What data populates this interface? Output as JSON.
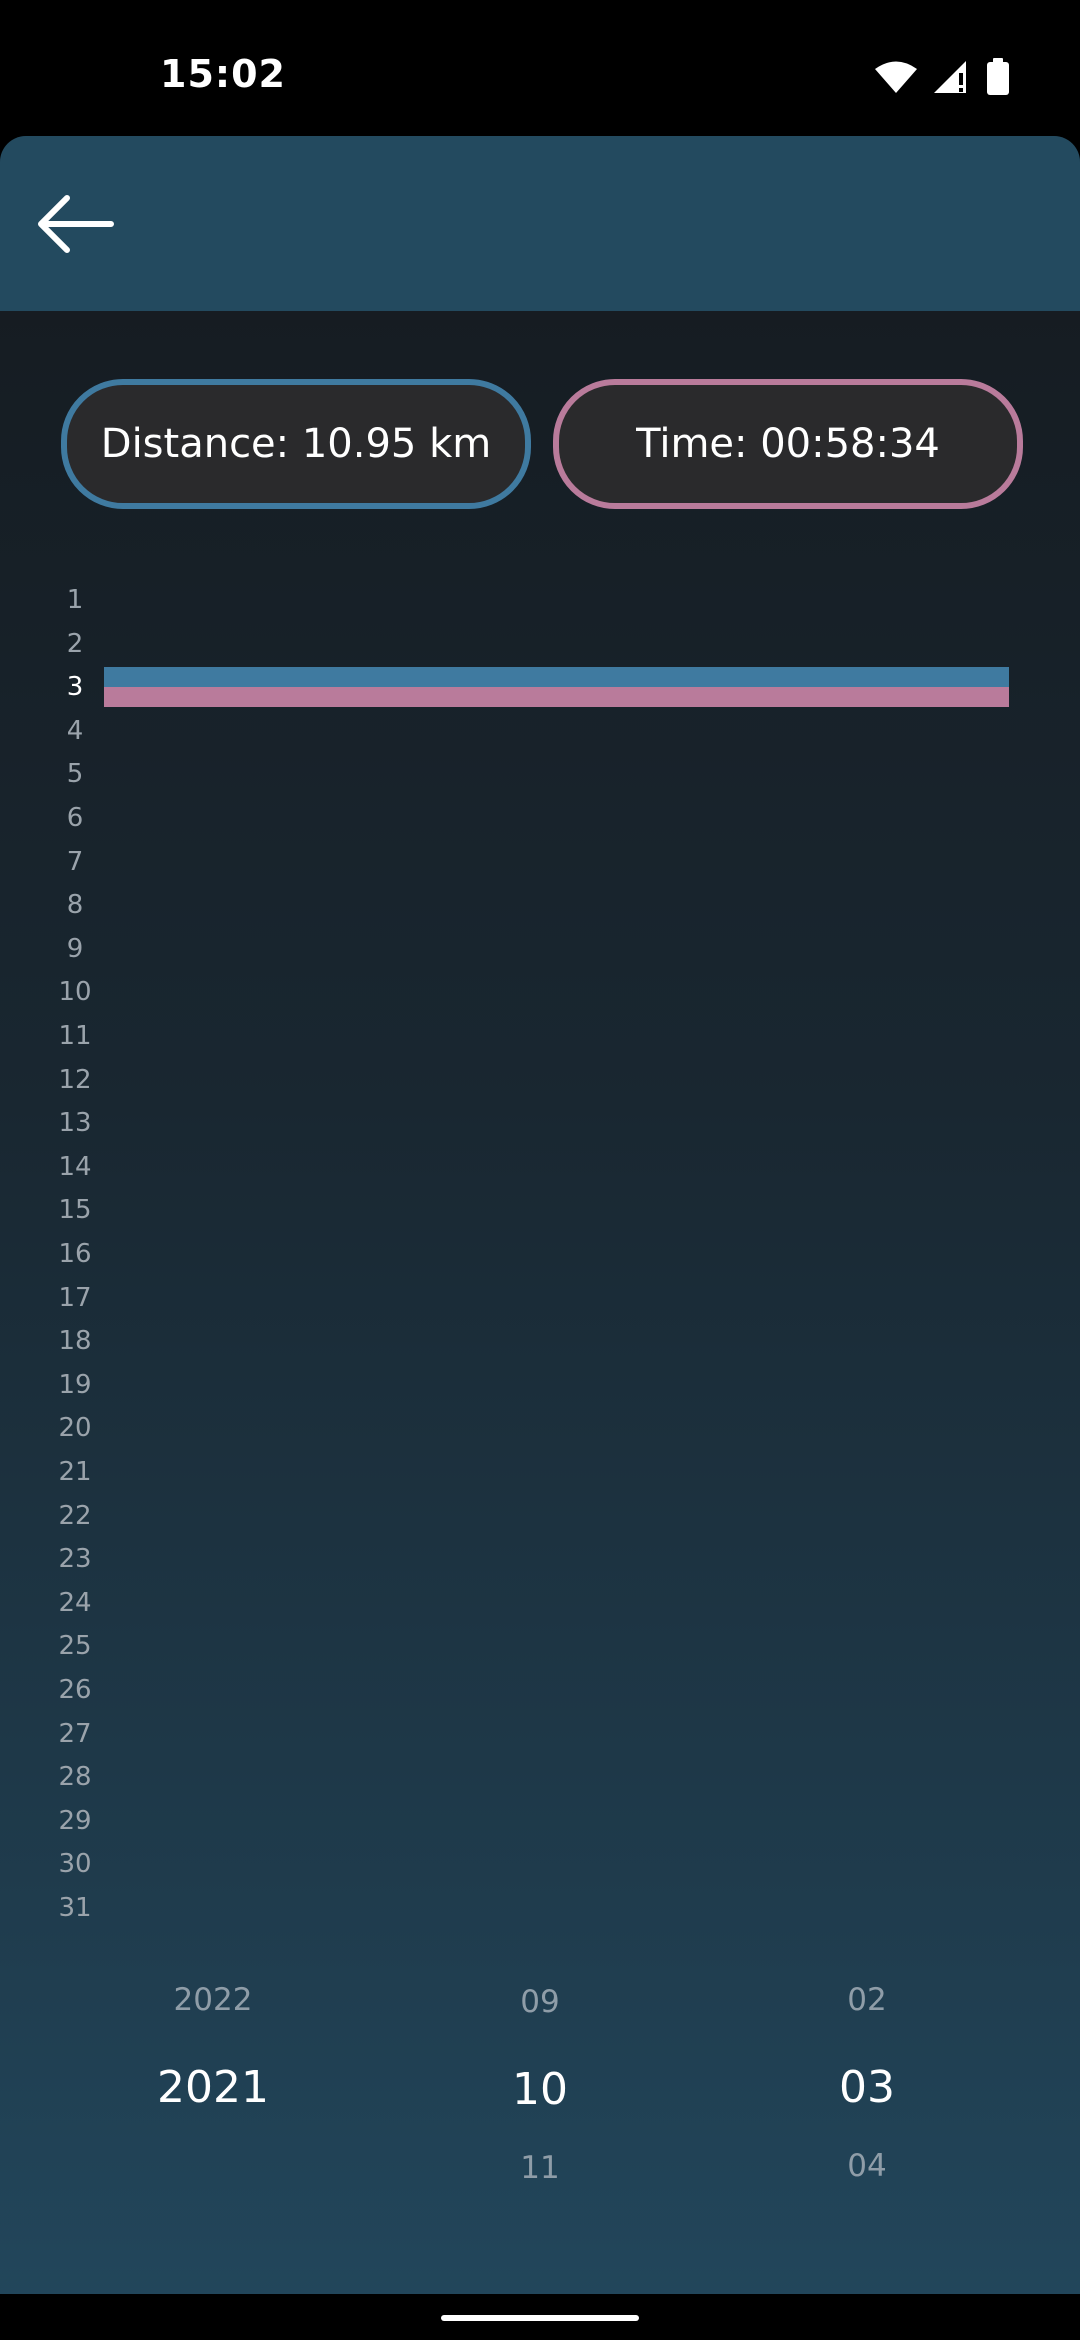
{
  "status_bar": {
    "time": "15:02",
    "icons": [
      "wifi-icon",
      "signal-icon",
      "battery-icon"
    ]
  },
  "toolbar": {
    "back_icon": "arrow-left-icon"
  },
  "stats": {
    "distance_label": "Distance: 10.95 km",
    "time_label": "Time: 00:58:34"
  },
  "colors": {
    "distance": "#3f7aa0",
    "time": "#b97b9b",
    "toolbar": "#234a5f"
  },
  "chart_data": {
    "type": "bar",
    "orientation": "horizontal",
    "categories": [
      "1",
      "2",
      "3",
      "4",
      "5",
      "6",
      "7",
      "8",
      "9",
      "10",
      "11",
      "12",
      "13",
      "14",
      "15",
      "16",
      "17",
      "18",
      "19",
      "20",
      "21",
      "22",
      "23",
      "24",
      "25",
      "26",
      "27",
      "28",
      "29",
      "30",
      "31"
    ],
    "highlighted_day": "3",
    "series": [
      {
        "key": "distance",
        "color": "#3f7aa0",
        "values": [
          0,
          0,
          1,
          0,
          0,
          0,
          0,
          0,
          0,
          0,
          0,
          0,
          0,
          0,
          0,
          0,
          0,
          0,
          0,
          0,
          0,
          0,
          0,
          0,
          0,
          0,
          0,
          0,
          0,
          0,
          0
        ]
      },
      {
        "key": "time",
        "color": "#b97b9b",
        "values": [
          0,
          0,
          1,
          0,
          0,
          0,
          0,
          0,
          0,
          0,
          0,
          0,
          0,
          0,
          0,
          0,
          0,
          0,
          0,
          0,
          0,
          0,
          0,
          0,
          0,
          0,
          0,
          0,
          0,
          0,
          0
        ]
      }
    ]
  },
  "date_picker": {
    "year": {
      "prev": "2022",
      "selected": "2021",
      "next": ""
    },
    "month": {
      "prev": "09",
      "selected": "10",
      "next": "11"
    },
    "day": {
      "prev": "02",
      "selected": "03",
      "next": "04"
    }
  }
}
